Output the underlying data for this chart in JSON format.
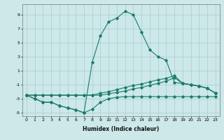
{
  "xlabel": "Humidex (Indice chaleur)",
  "bg_color": "#cce8e8",
  "grid_color": "#aacccc",
  "line_color": "#1a7a6a",
  "xlim": [
    -0.5,
    23.5
  ],
  "ylim": [
    -5.5,
    10.5
  ],
  "xticks": [
    0,
    1,
    2,
    3,
    4,
    5,
    6,
    7,
    8,
    9,
    10,
    11,
    12,
    13,
    14,
    15,
    16,
    17,
    18,
    19,
    20,
    21,
    22,
    23
  ],
  "yticks": [
    -5,
    -3,
    -1,
    1,
    3,
    5,
    7,
    9
  ],
  "line1_x": [
    0,
    1,
    2,
    3,
    4,
    5,
    6,
    7,
    8,
    9,
    10,
    11,
    12,
    13,
    14,
    15,
    16,
    17,
    18,
    19,
    20,
    21,
    22,
    23
  ],
  "line1_y": [
    -2.5,
    -3.0,
    -3.5,
    -3.5,
    -4.0,
    -4.3,
    -4.6,
    -5.0,
    -4.5,
    -3.5,
    -3.0,
    -2.8,
    -2.7,
    -2.7,
    -2.7,
    -2.7,
    -2.7,
    -2.7,
    -2.7,
    -2.7,
    -2.7,
    -2.7,
    -2.7,
    -2.7
  ],
  "line2_x": [
    0,
    1,
    2,
    3,
    4,
    5,
    6,
    7,
    8,
    9,
    10,
    11,
    12,
    13,
    14,
    15,
    16,
    17,
    18,
    19,
    20,
    21,
    22,
    23
  ],
  "line2_y": [
    -2.5,
    -3.0,
    -3.5,
    -3.5,
    -4.0,
    -4.3,
    -4.6,
    -5.0,
    2.2,
    6.0,
    8.0,
    8.5,
    9.5,
    9.0,
    6.5,
    4.0,
    3.0,
    2.5,
    -0.7,
    -0.8,
    -1.0,
    -1.2,
    -1.5,
    -2.2
  ],
  "line3_x": [
    0,
    1,
    2,
    3,
    4,
    5,
    6,
    7,
    8,
    9,
    10,
    11,
    12,
    13,
    14,
    15,
    16,
    17,
    18,
    19,
    20,
    21,
    22,
    23
  ],
  "line3_y": [
    -2.5,
    -2.5,
    -2.5,
    -2.5,
    -2.5,
    -2.5,
    -2.5,
    -2.5,
    -2.5,
    -2.2,
    -2.0,
    -1.7,
    -1.4,
    -1.1,
    -0.9,
    -0.6,
    -0.3,
    -0.1,
    0.3,
    -0.8,
    -1.0,
    -1.2,
    -1.5,
    -2.2
  ],
  "line4_x": [
    0,
    1,
    2,
    3,
    4,
    5,
    6,
    7,
    8,
    9,
    10,
    11,
    12,
    13,
    14,
    15,
    16,
    17,
    18,
    19,
    20,
    21,
    22,
    23
  ],
  "line4_y": [
    -2.5,
    -2.5,
    -2.5,
    -2.5,
    -2.5,
    -2.5,
    -2.5,
    -2.5,
    -2.5,
    -2.5,
    -2.3,
    -2.1,
    -1.9,
    -1.6,
    -1.4,
    -1.1,
    -0.8,
    -0.5,
    0.0,
    -0.8,
    -1.0,
    -1.2,
    -1.5,
    -2.2
  ]
}
